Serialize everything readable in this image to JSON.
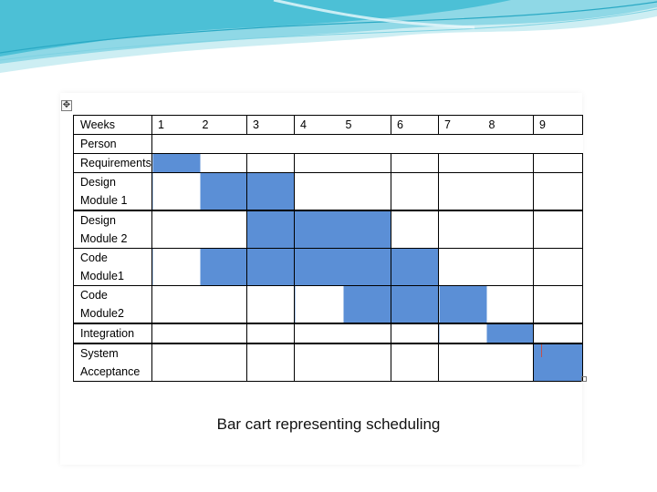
{
  "table": {
    "header": {
      "weeks_label": "Weeks",
      "weeks": [
        {
          "label": "1",
          "second": "2"
        },
        {
          "label": "3"
        },
        {
          "label": "4",
          "second": "5"
        },
        {
          "label": "6"
        },
        {
          "label": "7",
          "second": "8"
        },
        {
          "label": "9"
        }
      ]
    },
    "person_label": "Person",
    "tasks": [
      {
        "line1": "Requirements",
        "line2": "",
        "weeks": [
          1
        ]
      },
      {
        "line1": "Design",
        "line2": "Module 1",
        "weeks": [
          2,
          3
        ]
      },
      {
        "line1": "Design",
        "line2": "Module 2",
        "weeks": [
          3,
          4,
          5
        ]
      },
      {
        "line1": "Code",
        "line2": "Module1",
        "weeks": [
          2,
          3,
          4,
          5,
          6
        ]
      },
      {
        "line1": "Code",
        "line2": "Module2",
        "weeks": [
          5,
          6,
          7
        ]
      },
      {
        "line1": "Integration",
        "line2": "",
        "weeks": [
          8
        ]
      },
      {
        "line1": "System",
        "line2": "Acceptance",
        "weeks": [
          9
        ]
      }
    ],
    "bar_color": "#5b8fd6"
  },
  "caption": "Bar cart representing scheduling",
  "icons": {
    "move_handle": "move-arrows-icon"
  }
}
